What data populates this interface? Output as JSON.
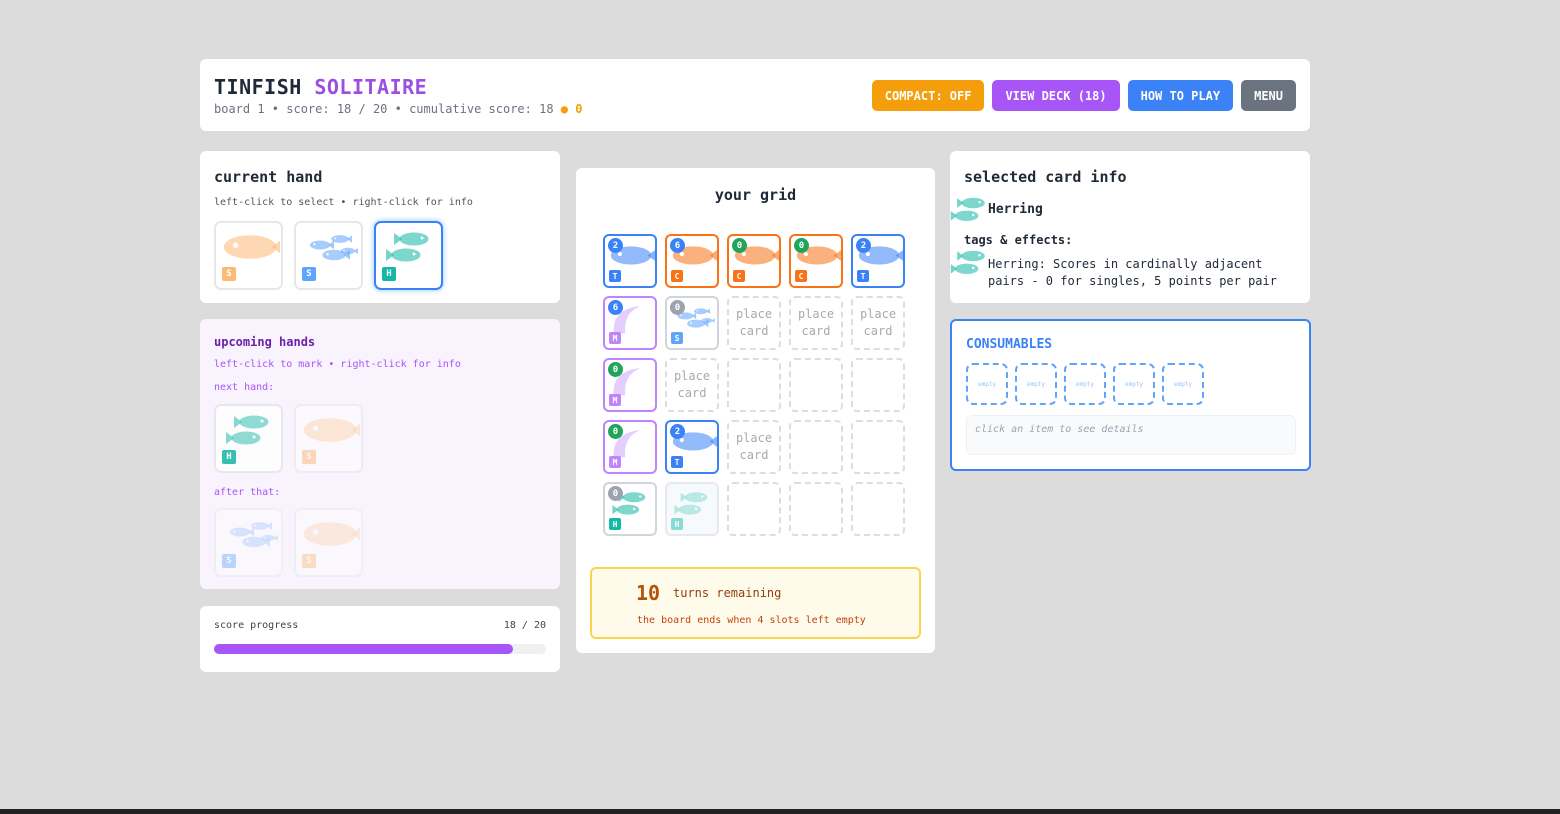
{
  "header": {
    "title_a": "TINFISH",
    "title_b": "SOLITAIRE",
    "subtitle": "board 1 • score: 18 / 20 • cumulative score: 18",
    "coins": "0",
    "buttons": {
      "compact": "COMPACT: OFF",
      "deck": "VIEW DECK (18)",
      "howto": "HOW TO PLAY",
      "menu": "MENU"
    }
  },
  "colors": {
    "T": "#3b82f6",
    "C": "#f97316",
    "M": "#c084fc",
    "S": "#60a5fa",
    "H": "#14b8a6",
    "Ssalmon": "#fdba74",
    "green": "#22a55a",
    "gray": "#9ca3af",
    "accent": "#a855f7"
  },
  "hand": {
    "title": "current hand",
    "hint": "left-click to select • right-click for info",
    "cards": [
      {
        "tag": "S",
        "kind": "salmon",
        "selected": false
      },
      {
        "tag": "S",
        "kind": "sardines",
        "selected": false
      },
      {
        "tag": "H",
        "kind": "herring",
        "selected": true
      }
    ]
  },
  "upcoming": {
    "title": "upcoming hands",
    "hint": "left-click to mark • right-click for info",
    "next_label": "next hand:",
    "after_label": "after that:",
    "next": [
      {
        "tag": "H",
        "kind": "herring"
      },
      {
        "tag": "S",
        "kind": "salmon"
      }
    ],
    "after": [
      {
        "tag": "S",
        "kind": "sardines"
      },
      {
        "tag": "S",
        "kind": "salmon"
      }
    ]
  },
  "progress": {
    "label": "score progress",
    "value_text": "18 / 20",
    "fraction": 0.9
  },
  "grid": {
    "title": "your grid",
    "placeholder": "place card",
    "cells": [
      {
        "tag": "T",
        "score": "2",
        "badge": "blue"
      },
      {
        "tag": "C",
        "score": "6",
        "badge": "blue"
      },
      {
        "tag": "C",
        "score": "0",
        "badge": "green"
      },
      {
        "tag": "C",
        "score": "0",
        "badge": "green"
      },
      {
        "tag": "T",
        "score": "2",
        "badge": "blue"
      },
      {
        "tag": "M",
        "score": "6",
        "badge": "blue"
      },
      {
        "tag": "S",
        "score": "0",
        "badge": "gray"
      },
      {
        "place": true
      },
      {
        "place": true
      },
      {
        "place": true
      },
      {
        "tag": "M",
        "score": "0",
        "badge": "green"
      },
      {
        "place": true
      },
      {},
      {},
      {},
      {
        "tag": "M",
        "score": "0",
        "badge": "green"
      },
      {
        "tag": "T",
        "score": "2",
        "badge": "blue"
      },
      {
        "place": true
      },
      {},
      {},
      {
        "tag": "H",
        "score": "0",
        "badge": "gray"
      },
      {
        "tag": "H",
        "preview": true
      },
      {},
      {},
      {}
    ]
  },
  "turns": {
    "count": "10",
    "label": "turns remaining",
    "note": "the board ends when 4 slots left empty"
  },
  "info": {
    "title": "selected card info",
    "name": "Herring",
    "tags_label": "tags & effects:",
    "effect": "Herring: Scores in cardinally adjacent pairs - 0 for singles, 5 points per pair"
  },
  "consumables": {
    "title": "CONSUMABLES",
    "slots": [
      "empty",
      "empty",
      "empty",
      "empty",
      "empty"
    ],
    "details": "click an item to see details"
  }
}
